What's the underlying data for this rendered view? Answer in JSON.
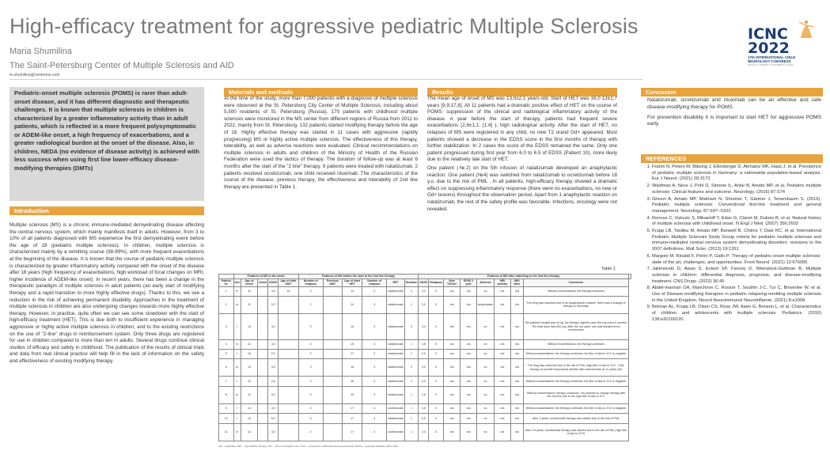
{
  "header": {
    "title": "High-efficacy treatment for aggressive pediatric Multiple Sclerosis",
    "author": "Maria Shumilina",
    "affiliation": "The Saint-Petersburg Center of Multiple Sclerosis and AID",
    "email": "m.shumilina@centreme.com"
  },
  "logo": {
    "main": "ICNC",
    "year": "2022",
    "line1": "17th INTERNATIONAL CHILD",
    "line2": "NEUROLOGY CONGRESS",
    "line3": "ANTALYA, TURKEY | OCTOBER 5-9, 2022",
    "accent": "#1b3e73"
  },
  "abstract": "Pediatric-onset multiple sclerosis (POMS) is rarer than adult-onset disease, and it has different diagnostic and therapeutic challenges. It is known that multiple sclerosis in children is characterized by a greater inflammatory activity than in adult patients, which is reflected in a more frequent polysymptomatic or ADEM-like onset, a high frequency of exacerbations, and a greater radiological burden at the onset of the disease. Also, in children, NEDA (no evidence of disease activity) is achieved with less success when using first line lower-efficacy disease-modifying therapies (DMTs)",
  "introduction": {
    "heading": "Introduction",
    "text": "Multiple sclerosis (MS) is a chronic immune-mediated demyelinating disease affecting the central nervous system, which mainly manifests itself in adults. However, from 3 to 10% of all patients diagnosed with MS experience the first demyelinating event before the age of 18 (pediatric multiple sclerosis). In children, multiple sclerosis is characterized mainly by a remitting course (98-99%), with more frequent exacerbations at the beginning of the disease. It is known that the course of pediatric multiple sclerosis is characterized by greater inflammatory activity compared with the onset of the disease after 18 years (high frequency of exacerbations, high workload of focal changes on MRI, higher incidence of ADEM-like onset). In recent years, there has been a change in the therapeutic paradigm of multiple sclerosis in adult patients (an early start of modifying therapy and a rapid transition to more highly effective drugs). Thanks to this, we see a reduction in the risk of achieving permanent disability. Approaches in the treatment of multiple sclerosis in children are also undergoing changes towards more highly effective therapy. However, in practice, quite often we can see some slowdown with the start of high-efficacy treatment (HET). This is due both to insufficient experience in managing aggressive or highly active multiple sclerosis in children, and to the existing restrictions on the use of \"2-line\" drugs in reimbursement system. Only three drugs are registered for use in children compared to more than ten in adults. Several drugs continue clinical studies of efficacy and safety in childhood. The publication of the results of clinical trials and data from real clinical practice will help fill in the lack of information on the safety and effectiveness of existing modifying therapy."
  },
  "materials": {
    "heading": "Materials and methods",
    "text": "At the time of the study, more than 7,000 patients with a diagnosis of multiple sclerosis were observed at the St. Petersburg City Center of Multiple Sclerosis, including about 5,500 residents of St. Petersburg (Russia). 170 patients with childhood multiple sclerosis were monitored in the MS center from different regions of Russia from 2011 to 2022, mainly from St. Petersburg. 132 patients started modifying therapy before the age of 18. Highly effective therapy was started in 11 cases with aggressive (rapidly progressing) MS or highly active multiple sclerosis. The effectiveness of this therapy, tolerability, as well as adverse reactions were evaluated. Clinical recommendations on multiple sclerosis in adults and children of the Ministry of Health of the Russian Federation were used the tactics of therapy. The duration of follow-up was at least 6 months after the start of the \"2 line\" therapy. 9 patients were treated with natalizumab, 2 patients received ocrelizumab, one child received rituximab. The characteristics of the course of the disease, previous therapy, the effectiveness and tolerability of 2nd line therapy are presented in Table 1."
  },
  "results": {
    "heading": "Results",
    "text1": "The mean age of onset of MS was 13,0±2,1 years old. Start of HET was 16,0 13±1,7 years [9,9;17,8]. All 11 patients had a dramatic positive effect of HET on the course of POMS: suppression of the clinical and radiological inflammatory activity of the disease. A year before the start of therapy, patients had frequent severe exacerbations (2,6±1,1; [1;4] ), high radiological activity. After the start of HET, no relapses of MS were registered in any child, no new T2 orand Gd+ appeared. Most patients showed a decrease in the EDSS score in the first months of therapy with further stabilization. In 2 cases the score of the EDSS remained the same. Only one patient progressed during first year from 6.0 to 6.5 of EDSS (Patient 10), more likely due to the relatively late start of HET.",
    "text2": "One patient (№2) on the 5th infusion of natalizumab developed an anaphylactic reaction. One patient (№4) was switched from natalizumab to ocrelizumab before 18 y.o. due to the risk of PML . In all patients, high-efficacy therapy showed a dramatic effect on suppressing inflammatory response (there were no exacerbations, no new or Gd+ lesions) throughout the observation period. Apart from 1 anaphylactic reaction on natalizumab, the rest of the safety profile was favorable. Infections, oncology were not revealed."
  },
  "conclusion": {
    "heading": "Concusion",
    "text1": "Natalizumab, ocrelizumab and rituximab can be an effective and safe disease-modifying therapy for POMS.",
    "text2": "For prevention disability it is important to start HET for aggressive POMS early"
  },
  "references": {
    "heading": "REFERENCES",
    "items": [
      "Frahm N, Peters M, Bätzing J, Ellenberger D, Akmatov MK, Haas J, et al. Prevalence of pediatric multiple sclerosis in Germany: a nationwide population-based analysis. Eur J Neurol. (2021) 28:3173",
      "Waldman A, Ness J, Pohl D, Simone IL, Anlar B, Amato MP, et al. Pediatric multiple sclerosis: Clinical features and outcome. Neurology. (2016) 87:S74",
      "Ghezzi A, Amato MP, Makhani N, Shreiner T, Gärtner J, Tenembaum S. (2016). Pediatric multiple sclerosis: Conventional first-line treatment and general management. Neurology, 87:S97–S102.",
      "Renoux C, Vukusic S, Mikaeloff Y, Edan G, Clanet M, Dubois B, et al. Natural history of multiple sclerosis with childhood onset. N Engl J Med. (2007) 356:2603",
      "Krupp LB, Tardieu M, Amato MP, Banwell B, Chitnis T, Dale RC, et al. International Pediatric Multiple Sclerosis Study Group criteria for pediatric multiple sclerosis and immune-mediated central nervous system demyelinating disorders: revisions to the 2007 definitions. Mult Scler. (2013) 19:1261",
      "Margoni M, Rinaldi F, Perini P, Gallo P. Therapy of pediatric-onset multiple sclerosis: state of the art, challenges, and opportunities. Front Neurol. (2021) 12:676095.",
      "Jakimovski D, Awan S, Eckert SP, Farooq O, Weinstock-Guttman B. Multiple sclerosis in children: differential diagnosis, prognosis, and disease-modifying treatment. CNS Drugs. (2022) 36:45",
      "Abdel-mannan OA, Manchoon C, Rossor T, Southin J-C, Tur C, Brownlee W, et al. Use of Disease-modifying therapies in pediatric relapsing-remitting multiple sclerosis in the United Kingdom. Neurol Neuroimmunol Neuroinflamm. (2021) 8:e1008.",
      "Belman AL, Krupp LB, Olsen CS, Rose JW, Aaen G, Benson L, et al. Characteristics of children and adolescents with multiple sclerosis. Pediatrics. (2016) 138:e20160120."
    ]
  },
  "table": {
    "caption": "Table 1",
    "groups": [
      "Features of MS in the onset",
      "Features of MS before the start to the 2nd line therapy",
      "Features of MS after switching to the 2nd line therapy"
    ],
    "columns": [
      "Patient №",
      "Sex",
      "Age of onset",
      "Onset",
      "EDSS",
      "Age of start DMT",
      "Number of relapses",
      "Previous DMT",
      "Age of start HET",
      "Number of relapses",
      "HET",
      "Duration",
      "EDSS",
      "Relapses",
      "New T2/Gd+",
      "EDSS 1 year",
      "Adverse",
      "MRI activity",
      "MRI after",
      "Comments"
    ],
    "rows": [
      [
        "1",
        "m",
        "11",
        "",
        "4,5",
        "14",
        "2",
        "",
        "14",
        "2",
        "natalizumab",
        "2",
        "4,0",
        "0",
        "n/a",
        "n/a",
        "no",
        "n/a",
        "n/a",
        "Without exacerbations, the therapy continues"
      ],
      [
        "2",
        "m",
        "11",
        "",
        "2,0",
        "",
        "2",
        "",
        "14",
        "3",
        "natalizumab",
        "1",
        "3,0",
        "0",
        "n/a",
        "n/a",
        "anaphylaxis",
        "n/a",
        "n/a",
        "The drug was canceled due to an anaphylactic reaction, there was a change of therapy to rituximab"
      ],
      [
        "3",
        "f",
        "14",
        "",
        "3,0",
        "",
        "3",
        "",
        "16",
        "3",
        "natalizumab",
        "2",
        "3,0",
        "0",
        "n/a",
        "n/a",
        "no",
        "n/a",
        "n/a",
        "The patient's weight was 54 kg, the therapy regimen was 300 mg every 6 months. The total dose was 600 mg. After the 3rd cycle, she was transferred to ocrelizumab"
      ],
      [
        "4",
        "m",
        "12",
        "",
        "4,0",
        "",
        "4",
        "",
        "15",
        "4",
        "natalizumab",
        "1",
        "3,5",
        "0",
        "n/a",
        "n/a",
        "no",
        "n/a",
        "n/a",
        "Without exacerbations, the therapy continues"
      ],
      [
        "5",
        "f",
        "15",
        "",
        "2,0",
        "",
        "2",
        "",
        "17",
        "2",
        "natalizumab",
        "1",
        "2,0",
        "0",
        "n/a",
        "n/a",
        "no",
        "n/a",
        "n/a",
        "Without exacerbations, the therapy continues, the titer of abs to JCV is negative"
      ],
      [
        "6",
        "m",
        "14",
        "",
        "3,5",
        "",
        "3",
        "",
        "16",
        "3",
        "natalizumab",
        "2",
        "3,0",
        "0",
        "n/a",
        "n/a",
        "no",
        "n/a",
        "n/a",
        "The drug was canceled due to the risk of PML (high titer of abs to JCV - 2,66, therapy of juvenile rheumatoid arthritis with methotrexate at 11 years old)"
      ],
      [
        "7",
        "f",
        "13",
        "",
        "2,5",
        "",
        "2",
        "",
        "16",
        "2",
        "natalizumab",
        "2",
        "2,0",
        "0",
        "n/a",
        "n/a",
        "no",
        "n/a",
        "n/a",
        "Without exacerbations, the therapy continues, the titer of abs to JCV is negative"
      ],
      [
        "8",
        "m",
        "12",
        "",
        "3,0",
        "",
        "3",
        "",
        "15",
        "3",
        "natalizumab",
        "1",
        "2,5",
        "0",
        "n/a",
        "n/a",
        "no",
        "n/a",
        "n/a",
        "Without exacerbations, therapy continues. It is planned to change therapy with the 2nd line due to the high titer of abs to JCV"
      ],
      [
        "9",
        "f",
        "14",
        "",
        "4,0",
        "",
        "4",
        "",
        "17",
        "4",
        "ocrelizumab",
        "1",
        "3,5",
        "0",
        "n/a",
        "n/a",
        "no",
        "n/a",
        "n/a",
        "Without exacerbations, the therapy continues, the titer of abs to JCV is negative"
      ],
      [
        "10",
        "f",
        "13",
        "",
        "6,0",
        "",
        "3",
        "",
        "17",
        "3",
        "natalizumab",
        "1",
        "6,5",
        "0",
        "n/a",
        "n/a",
        "no",
        "n/a",
        "n/a",
        "After 2 years, ocrelizumab therapy was started due to the risk of PML"
      ],
      [
        "11",
        "m",
        "14",
        "",
        "3,0",
        "",
        "2",
        "",
        "17",
        "2",
        "ocrelizumab",
        "1",
        "2,0",
        "0",
        "n/a",
        "n/a",
        "no",
        "n/a",
        "n/a",
        "After 2.5 years, ocrelizumab therapy was started due to the risk of PML (high titer of abs to JCV)"
      ]
    ],
    "footnote": "Abs – antibodies, HET – high-efficacy therapy, JCV – John Cunningham virus, PML – progressive multifocal leukoencephalopathy, EDSS – expanded disability status scale"
  }
}
